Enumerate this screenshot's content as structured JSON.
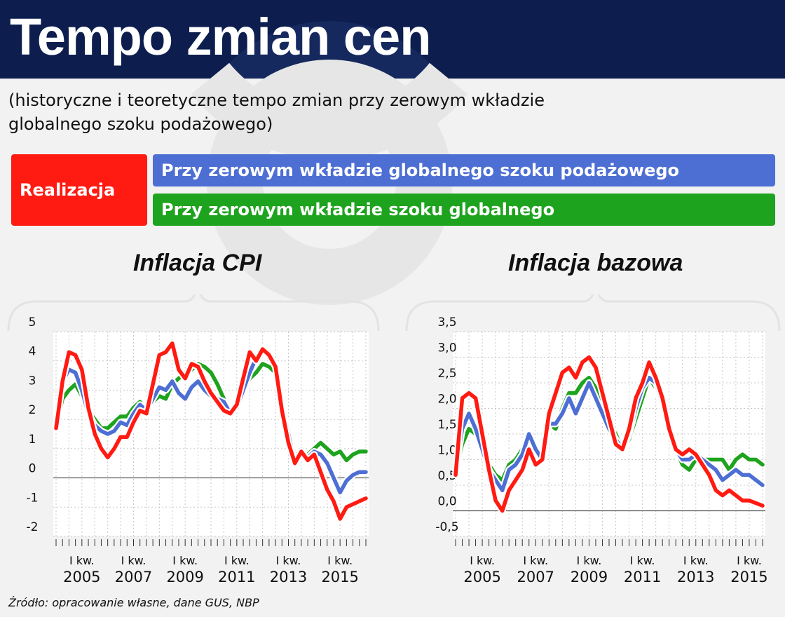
{
  "header": {
    "title": "Tempo zmian cen"
  },
  "subtitle": "(historyczne i teoretyczne tempo zmian przy zerowym wkładzie globalnego szoku podażowego)",
  "legend": {
    "realizacja": "Realizacja",
    "blue": "Przy zerowym wkładzie globalnego szoku podażowego",
    "green": "Przy zerowym wkładzie szoku globalnego"
  },
  "colors": {
    "red": "#ff1a12",
    "blue": "#4d6fd4",
    "green": "#1ea31e",
    "header": "#0c1d4e"
  },
  "source": "Źródło: opracowanie własne, dane GUS, NBP",
  "chart_data": [
    {
      "type": "line",
      "title": "Inflacja CPI",
      "ylim": [
        -2,
        5
      ],
      "yticks": [
        "5",
        "4",
        "3",
        "2",
        "1",
        "0",
        "-1",
        "-2"
      ],
      "ytick_values": [
        5,
        4,
        3,
        2,
        1,
        0,
        -1,
        -2
      ],
      "xticks": [
        {
          "l1": "I kw.",
          "l2": "2005",
          "i": 4
        },
        {
          "l1": "I kw.",
          "l2": "2007",
          "i": 12
        },
        {
          "l1": "I kw.",
          "l2": "2009",
          "i": 20
        },
        {
          "l1": "I kw.",
          "l2": "2011",
          "i": 28
        },
        {
          "l1": "I kw.",
          "l2": "2013",
          "i": 36
        },
        {
          "l1": "I kw.",
          "l2": "2015",
          "i": 44
        }
      ],
      "grid": true,
      "series": [
        {
          "key": "green",
          "color": "#1ea31e",
          "values": [
            1.8,
            2.7,
            3.0,
            3.2,
            2.8,
            2.3,
            2.0,
            1.7,
            1.7,
            1.9,
            2.1,
            2.1,
            2.4,
            2.6,
            2.3,
            2.6,
            2.8,
            2.7,
            3.2,
            3.4,
            3.6,
            3.7,
            3.9,
            3.8,
            3.6,
            3.2,
            2.7,
            2.2,
            2.4,
            3.0,
            3.4,
            3.6,
            3.9,
            3.8,
            3.6,
            2.5,
            1.5,
            0.8,
            0.7,
            0.8,
            1.0,
            1.2,
            1.0,
            0.8,
            0.9,
            0.6,
            0.8,
            0.9,
            0.9
          ]
        },
        {
          "key": "blue",
          "color": "#4d6fd4",
          "values": [
            1.8,
            3.3,
            3.7,
            3.6,
            3.0,
            2.2,
            1.8,
            1.6,
            1.5,
            1.6,
            1.9,
            1.8,
            2.2,
            2.5,
            2.3,
            2.7,
            3.1,
            3.0,
            3.3,
            2.9,
            2.7,
            3.1,
            3.3,
            3.0,
            2.8,
            2.7,
            2.6,
            2.2,
            2.4,
            3.0,
            3.6,
            4.1,
            4.3,
            4.2,
            3.8,
            2.5,
            1.5,
            0.5,
            0.8,
            0.7,
            0.9,
            0.8,
            0.5,
            0.0,
            -0.5,
            -0.1,
            0.1,
            0.2,
            0.2
          ]
        },
        {
          "key": "red",
          "color": "#ff1a12",
          "values": [
            1.7,
            3.3,
            4.3,
            4.2,
            3.7,
            2.4,
            1.5,
            1.0,
            0.7,
            1.0,
            1.4,
            1.4,
            1.9,
            2.3,
            2.2,
            3.2,
            4.2,
            4.3,
            4.6,
            3.7,
            3.4,
            3.9,
            3.8,
            3.3,
            2.9,
            2.6,
            2.3,
            2.2,
            2.5,
            3.4,
            4.3,
            4.0,
            4.4,
            4.2,
            3.8,
            2.3,
            1.2,
            0.5,
            0.9,
            0.6,
            0.8,
            0.2,
            -0.4,
            -0.8,
            -1.4,
            -1.0,
            -0.9,
            -0.8,
            -0.7
          ]
        }
      ]
    },
    {
      "type": "line",
      "title": "Inflacja bazowa",
      "ylim": [
        -0.5,
        3.5
      ],
      "yticks": [
        "3,5",
        "3,0",
        "2,5",
        "2,0",
        "1,5",
        "1,0",
        "0,5",
        "0,0",
        "-0,5"
      ],
      "ytick_values": [
        3.5,
        3.0,
        2.5,
        2.0,
        1.5,
        1.0,
        0.5,
        0.0,
        -0.5
      ],
      "xticks": [
        {
          "l1": "I kw.",
          "l2": "2005",
          "i": 4
        },
        {
          "l1": "I kw.",
          "l2": "2007",
          "i": 12
        },
        {
          "l1": "I kw.",
          "l2": "2009",
          "i": 20
        },
        {
          "l1": "I kw.",
          "l2": "2011",
          "i": 28
        },
        {
          "l1": "I kw.",
          "l2": "2013",
          "i": 36
        },
        {
          "l1": "I kw.",
          "l2": "2015",
          "i": 44
        }
      ],
      "grid": true,
      "series": [
        {
          "key": "green",
          "color": "#1ea31e",
          "values": [
            0.8,
            1.3,
            1.6,
            1.5,
            1.2,
            0.9,
            0.7,
            0.6,
            0.9,
            1.0,
            1.2,
            1.5,
            1.2,
            1.0,
            1.7,
            1.6,
            2.0,
            2.3,
            2.3,
            2.5,
            2.6,
            2.4,
            2.0,
            1.7,
            1.5,
            1.2,
            1.4,
            1.8,
            2.2,
            2.6,
            2.4,
            2.1,
            1.6,
            1.2,
            0.9,
            0.8,
            1.0,
            1.0,
            1.0,
            1.0,
            1.0,
            0.8,
            1.0,
            1.1,
            1.0,
            1.0,
            0.9
          ]
        },
        {
          "key": "blue",
          "color": "#4d6fd4",
          "values": [
            0.8,
            1.6,
            1.9,
            1.6,
            1.2,
            0.8,
            0.6,
            0.4,
            0.8,
            0.9,
            1.1,
            1.5,
            1.2,
            1.0,
            1.7,
            1.7,
            1.9,
            2.2,
            1.9,
            2.2,
            2.5,
            2.2,
            1.9,
            1.6,
            1.4,
            1.2,
            1.5,
            2.0,
            2.4,
            2.6,
            2.5,
            2.1,
            1.6,
            1.2,
            1.0,
            1.0,
            1.1,
            1.0,
            0.9,
            0.8,
            0.6,
            0.7,
            0.8,
            0.7,
            0.7,
            0.6,
            0.5
          ]
        },
        {
          "key": "red",
          "color": "#ff1a12",
          "values": [
            0.7,
            2.2,
            2.3,
            2.2,
            1.5,
            0.8,
            0.2,
            0.0,
            0.4,
            0.6,
            0.8,
            1.2,
            0.9,
            1.0,
            1.9,
            2.3,
            2.7,
            2.8,
            2.6,
            2.9,
            3.0,
            2.8,
            2.3,
            1.8,
            1.3,
            1.2,
            1.6,
            2.2,
            2.5,
            2.9,
            2.6,
            2.2,
            1.6,
            1.2,
            1.1,
            1.2,
            1.1,
            0.9,
            0.7,
            0.4,
            0.3,
            0.4,
            0.3,
            0.2,
            0.2,
            0.15,
            0.1
          ]
        }
      ]
    }
  ]
}
